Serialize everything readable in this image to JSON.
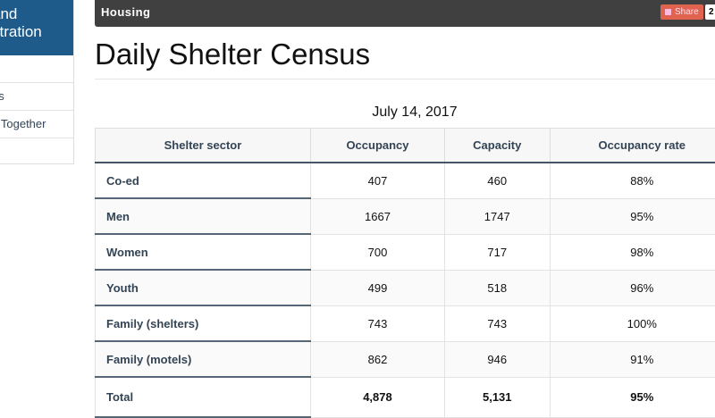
{
  "sidebar": {
    "header_lines": [
      "and",
      "stration"
    ],
    "items": [
      "",
      "es",
      "s Together",
      ""
    ]
  },
  "topbar": {
    "title": "Housing",
    "share_label": "Share",
    "share_count": "2"
  },
  "page": {
    "title": "Daily Shelter Census",
    "date": "July 14, 2017"
  },
  "table": {
    "headers": [
      "Shelter sector",
      "Occupancy",
      "Capacity",
      "Occupancy rate"
    ],
    "rows": [
      [
        "Co-ed",
        "407",
        "460",
        "88%"
      ],
      [
        "Men",
        "1667",
        "1747",
        "95%"
      ],
      [
        "Women",
        "700",
        "717",
        "98%"
      ],
      [
        "Youth",
        "499",
        "518",
        "96%"
      ],
      [
        "Family (shelters)",
        "743",
        "743",
        "100%"
      ],
      [
        "Family (motels)",
        "862",
        "946",
        "91%"
      ]
    ],
    "total": [
      "Total",
      "4,878",
      "5,131",
      "95%"
    ]
  },
  "colors": {
    "sidebar_header": "#1f5b8a",
    "topbar": "#404040",
    "share": "#e0634f"
  }
}
